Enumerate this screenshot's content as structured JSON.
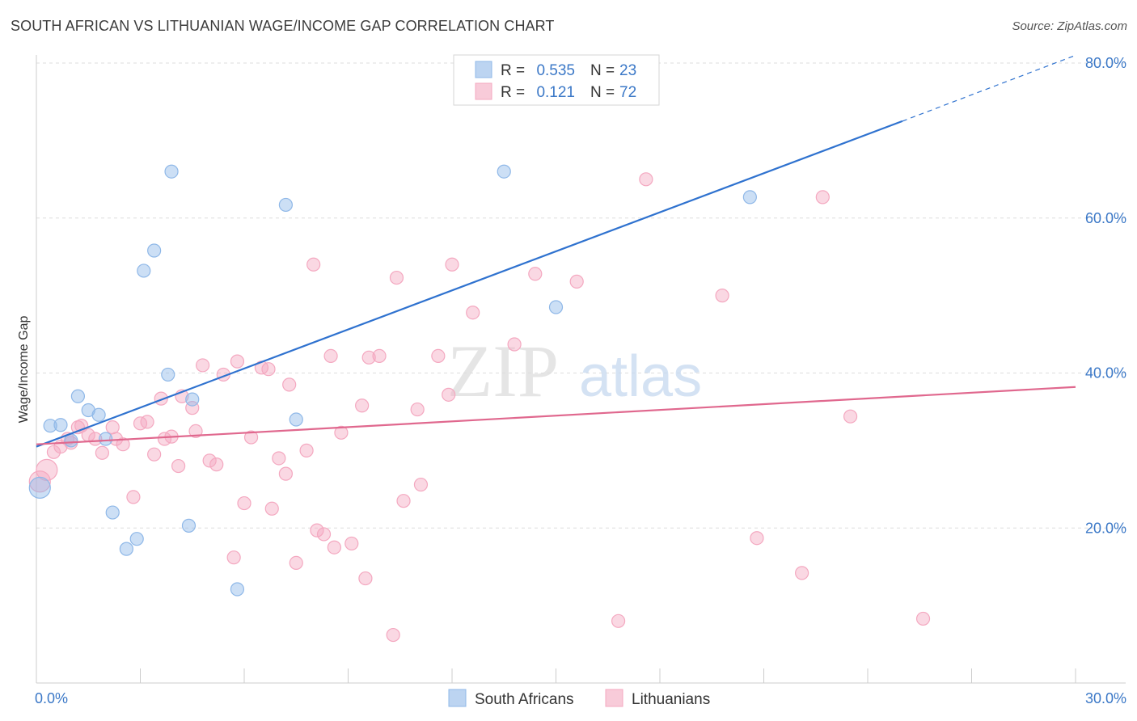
{
  "chart_data": {
    "type": "scatter",
    "title": "SOUTH AFRICAN VS LITHUANIAN WAGE/INCOME GAP CORRELATION CHART",
    "source": "Source: ZipAtlas.com",
    "ylabel": "Wage/Income Gap",
    "xlabel": "",
    "xlim": [
      0,
      30
    ],
    "ylim": [
      0,
      80
    ],
    "x_tick_labels": [
      "0.0%",
      "30.0%"
    ],
    "x_tick_values": [
      0,
      30
    ],
    "y_tick_labels": [
      "20.0%",
      "40.0%",
      "60.0%",
      "80.0%"
    ],
    "y_tick_values": [
      20,
      40,
      60,
      80
    ],
    "grid": true,
    "legend_position": "top-center",
    "watermark": "ZIPatlas",
    "series": [
      {
        "name": "South Africans",
        "color": "#8fb8e8",
        "line_color": "#2f72cf",
        "r_label": "R =",
        "r_value": "0.535",
        "n_label": "N =",
        "n_value": "23",
        "trend": {
          "x0": 0,
          "y0": 30.5,
          "x1": 25,
          "y1": 72.5,
          "dash_to_x": 30,
          "dash_to_y": 81
        },
        "points": [
          [
            0.1,
            25.2
          ],
          [
            0.4,
            33.2
          ],
          [
            0.7,
            33.3
          ],
          [
            1.0,
            31.3
          ],
          [
            1.2,
            37.0
          ],
          [
            1.5,
            35.2
          ],
          [
            1.8,
            34.6
          ],
          [
            2.0,
            31.5
          ],
          [
            2.2,
            22.0
          ],
          [
            2.6,
            17.3
          ],
          [
            2.9,
            18.6
          ],
          [
            3.1,
            53.2
          ],
          [
            3.4,
            55.8
          ],
          [
            3.8,
            39.8
          ],
          [
            3.9,
            66.0
          ],
          [
            4.4,
            20.3
          ],
          [
            4.5,
            36.6
          ],
          [
            5.8,
            12.1
          ],
          [
            7.2,
            61.7
          ],
          [
            7.5,
            34.0
          ],
          [
            13.5,
            66.0
          ],
          [
            15.0,
            48.5
          ],
          [
            20.6,
            62.7
          ]
        ]
      },
      {
        "name": "Lithuanians",
        "color": "#f4a8c0",
        "line_color": "#e0688e",
        "r_label": "R =",
        "r_value": "0.121",
        "n_label": "N =",
        "n_value": "72",
        "trend": {
          "x0": 0,
          "y0": 30.8,
          "x1": 30,
          "y1": 38.2
        },
        "points": [
          [
            0.1,
            26.0
          ],
          [
            0.3,
            27.5
          ],
          [
            0.5,
            29.8
          ],
          [
            0.7,
            30.5
          ],
          [
            0.9,
            31.5
          ],
          [
            1.0,
            31.0
          ],
          [
            1.2,
            33.0
          ],
          [
            1.3,
            33.2
          ],
          [
            1.5,
            32.0
          ],
          [
            1.7,
            31.5
          ],
          [
            1.9,
            29.7
          ],
          [
            2.2,
            33.0
          ],
          [
            2.3,
            31.5
          ],
          [
            2.5,
            30.8
          ],
          [
            2.8,
            24.0
          ],
          [
            3.0,
            33.5
          ],
          [
            3.2,
            33.7
          ],
          [
            3.4,
            29.5
          ],
          [
            3.6,
            36.7
          ],
          [
            3.7,
            31.5
          ],
          [
            3.9,
            31.8
          ],
          [
            4.1,
            28.0
          ],
          [
            4.2,
            37.0
          ],
          [
            4.5,
            35.5
          ],
          [
            4.6,
            32.5
          ],
          [
            4.8,
            41.0
          ],
          [
            5.0,
            28.7
          ],
          [
            5.2,
            28.2
          ],
          [
            5.4,
            39.8
          ],
          [
            5.7,
            16.2
          ],
          [
            5.8,
            41.5
          ],
          [
            6.0,
            23.2
          ],
          [
            6.2,
            31.7
          ],
          [
            6.5,
            40.7
          ],
          [
            6.7,
            40.5
          ],
          [
            6.8,
            22.5
          ],
          [
            7.0,
            29.0
          ],
          [
            7.2,
            27.0
          ],
          [
            7.3,
            38.5
          ],
          [
            7.5,
            15.5
          ],
          [
            7.8,
            30.0
          ],
          [
            8.0,
            54.0
          ],
          [
            8.1,
            19.7
          ],
          [
            8.3,
            19.2
          ],
          [
            8.5,
            42.2
          ],
          [
            8.6,
            17.5
          ],
          [
            8.8,
            32.3
          ],
          [
            9.1,
            18.0
          ],
          [
            9.4,
            35.8
          ],
          [
            9.5,
            13.5
          ],
          [
            9.6,
            42.0
          ],
          [
            9.9,
            42.2
          ],
          [
            10.3,
            6.2
          ],
          [
            10.4,
            52.3
          ],
          [
            10.6,
            23.5
          ],
          [
            11.0,
            35.3
          ],
          [
            11.1,
            25.6
          ],
          [
            11.6,
            42.2
          ],
          [
            11.9,
            37.2
          ],
          [
            12.0,
            54.0
          ],
          [
            12.6,
            47.8
          ],
          [
            13.8,
            43.7
          ],
          [
            14.4,
            52.8
          ],
          [
            15.6,
            51.8
          ],
          [
            16.8,
            8.0
          ],
          [
            17.6,
            65.0
          ],
          [
            19.8,
            50.0
          ],
          [
            20.8,
            18.7
          ],
          [
            22.1,
            14.2
          ],
          [
            22.7,
            62.7
          ],
          [
            23.5,
            34.4
          ],
          [
            25.6,
            8.3
          ]
        ]
      }
    ]
  }
}
